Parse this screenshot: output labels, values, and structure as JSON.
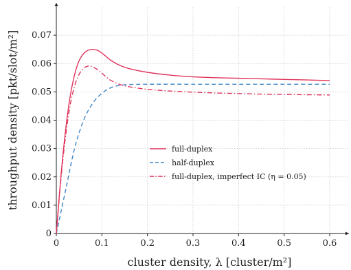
{
  "chart_data": {
    "type": "line",
    "title": "",
    "xlabel": "cluster density, λ [cluster/m²]",
    "ylabel": "throughput density [pkt/slot/m²]",
    "xlim": [
      0,
      0.6
    ],
    "ylim": [
      0,
      0.08
    ],
    "xticks": [
      "0",
      "0.1",
      "0.2",
      "0.3",
      "0.4",
      "0.5",
      "0.6"
    ],
    "yticks": [
      "0",
      "0.01",
      "0.02",
      "0.03",
      "0.04",
      "0.05",
      "0.06",
      "0.07"
    ],
    "grid": true,
    "legend_position": "center",
    "series": [
      {
        "name": "full-duplex",
        "color": "#e0345c",
        "dash": "solid",
        "x": [
          0,
          0.01,
          0.02,
          0.03,
          0.04,
          0.05,
          0.06,
          0.07,
          0.08,
          0.09,
          0.1,
          0.11,
          0.12,
          0.14,
          0.16,
          0.2,
          0.25,
          0.3,
          0.35,
          0.4,
          0.45,
          0.5,
          0.55,
          0.6
        ],
        "y": [
          0,
          0.02,
          0.036,
          0.048,
          0.056,
          0.061,
          0.0635,
          0.0647,
          0.065,
          0.0647,
          0.0637,
          0.0624,
          0.0611,
          0.0593,
          0.0582,
          0.0569,
          0.0559,
          0.0553,
          0.055,
          0.0548,
          0.0546,
          0.0544,
          0.0542,
          0.054
        ]
      },
      {
        "name": "half-duplex",
        "color": "#3d86c6",
        "dash": "dashed",
        "x": [
          0,
          0.02,
          0.04,
          0.06,
          0.08,
          0.1,
          0.12,
          0.14,
          0.16,
          0.2,
          0.3,
          0.4,
          0.5,
          0.6
        ],
        "y": [
          0,
          0.015,
          0.03,
          0.04,
          0.046,
          0.0495,
          0.0515,
          0.0523,
          0.0526,
          0.0527,
          0.0527,
          0.0527,
          0.0527,
          0.0527
        ]
      },
      {
        "name": "full-duplex, imperfect IC (η = 0.05)",
        "color": "#e0345c",
        "dash": "dashdot",
        "x": [
          0,
          0.01,
          0.02,
          0.03,
          0.04,
          0.05,
          0.06,
          0.07,
          0.08,
          0.09,
          0.1,
          0.11,
          0.12,
          0.14,
          0.16,
          0.2,
          0.25,
          0.3,
          0.35,
          0.4,
          0.45,
          0.5,
          0.55,
          0.6
        ],
        "y": [
          0,
          0.019,
          0.034,
          0.045,
          0.052,
          0.0562,
          0.0583,
          0.0591,
          0.0588,
          0.0579,
          0.0566,
          0.0552,
          0.054,
          0.0526,
          0.0518,
          0.0509,
          0.0503,
          0.0499,
          0.0496,
          0.0494,
          0.0492,
          0.0491,
          0.049,
          0.0489
        ]
      }
    ]
  }
}
